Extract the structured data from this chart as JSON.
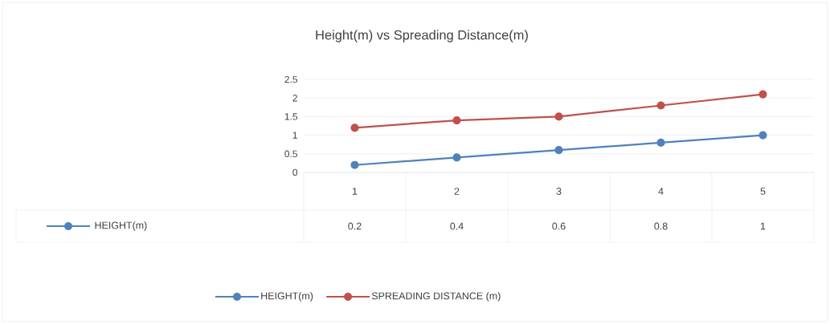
{
  "chart_data": {
    "type": "line",
    "title": "Height(m) vs Spreading Distance(m)",
    "categories": [
      "1",
      "2",
      "3",
      "4",
      "5"
    ],
    "series": [
      {
        "name": "HEIGHT(m)",
        "color": "#4f81bd",
        "values": [
          0.2,
          0.4,
          0.6,
          0.8,
          1
        ],
        "value_labels": [
          "0.2",
          "0.4",
          "0.6",
          "0.8",
          "1"
        ]
      },
      {
        "name": "SPREADING DISTANCE (m)",
        "color": "#c0504d",
        "values": [
          1.2,
          1.4,
          1.5,
          1.8,
          2.1
        ]
      }
    ],
    "ylim": [
      0,
      2.5
    ],
    "yticks": [
      0,
      0.5,
      1,
      1.5,
      2,
      2.5
    ],
    "grid": "y",
    "legend": "bottom",
    "marker": "circle",
    "line_style": "solid"
  }
}
